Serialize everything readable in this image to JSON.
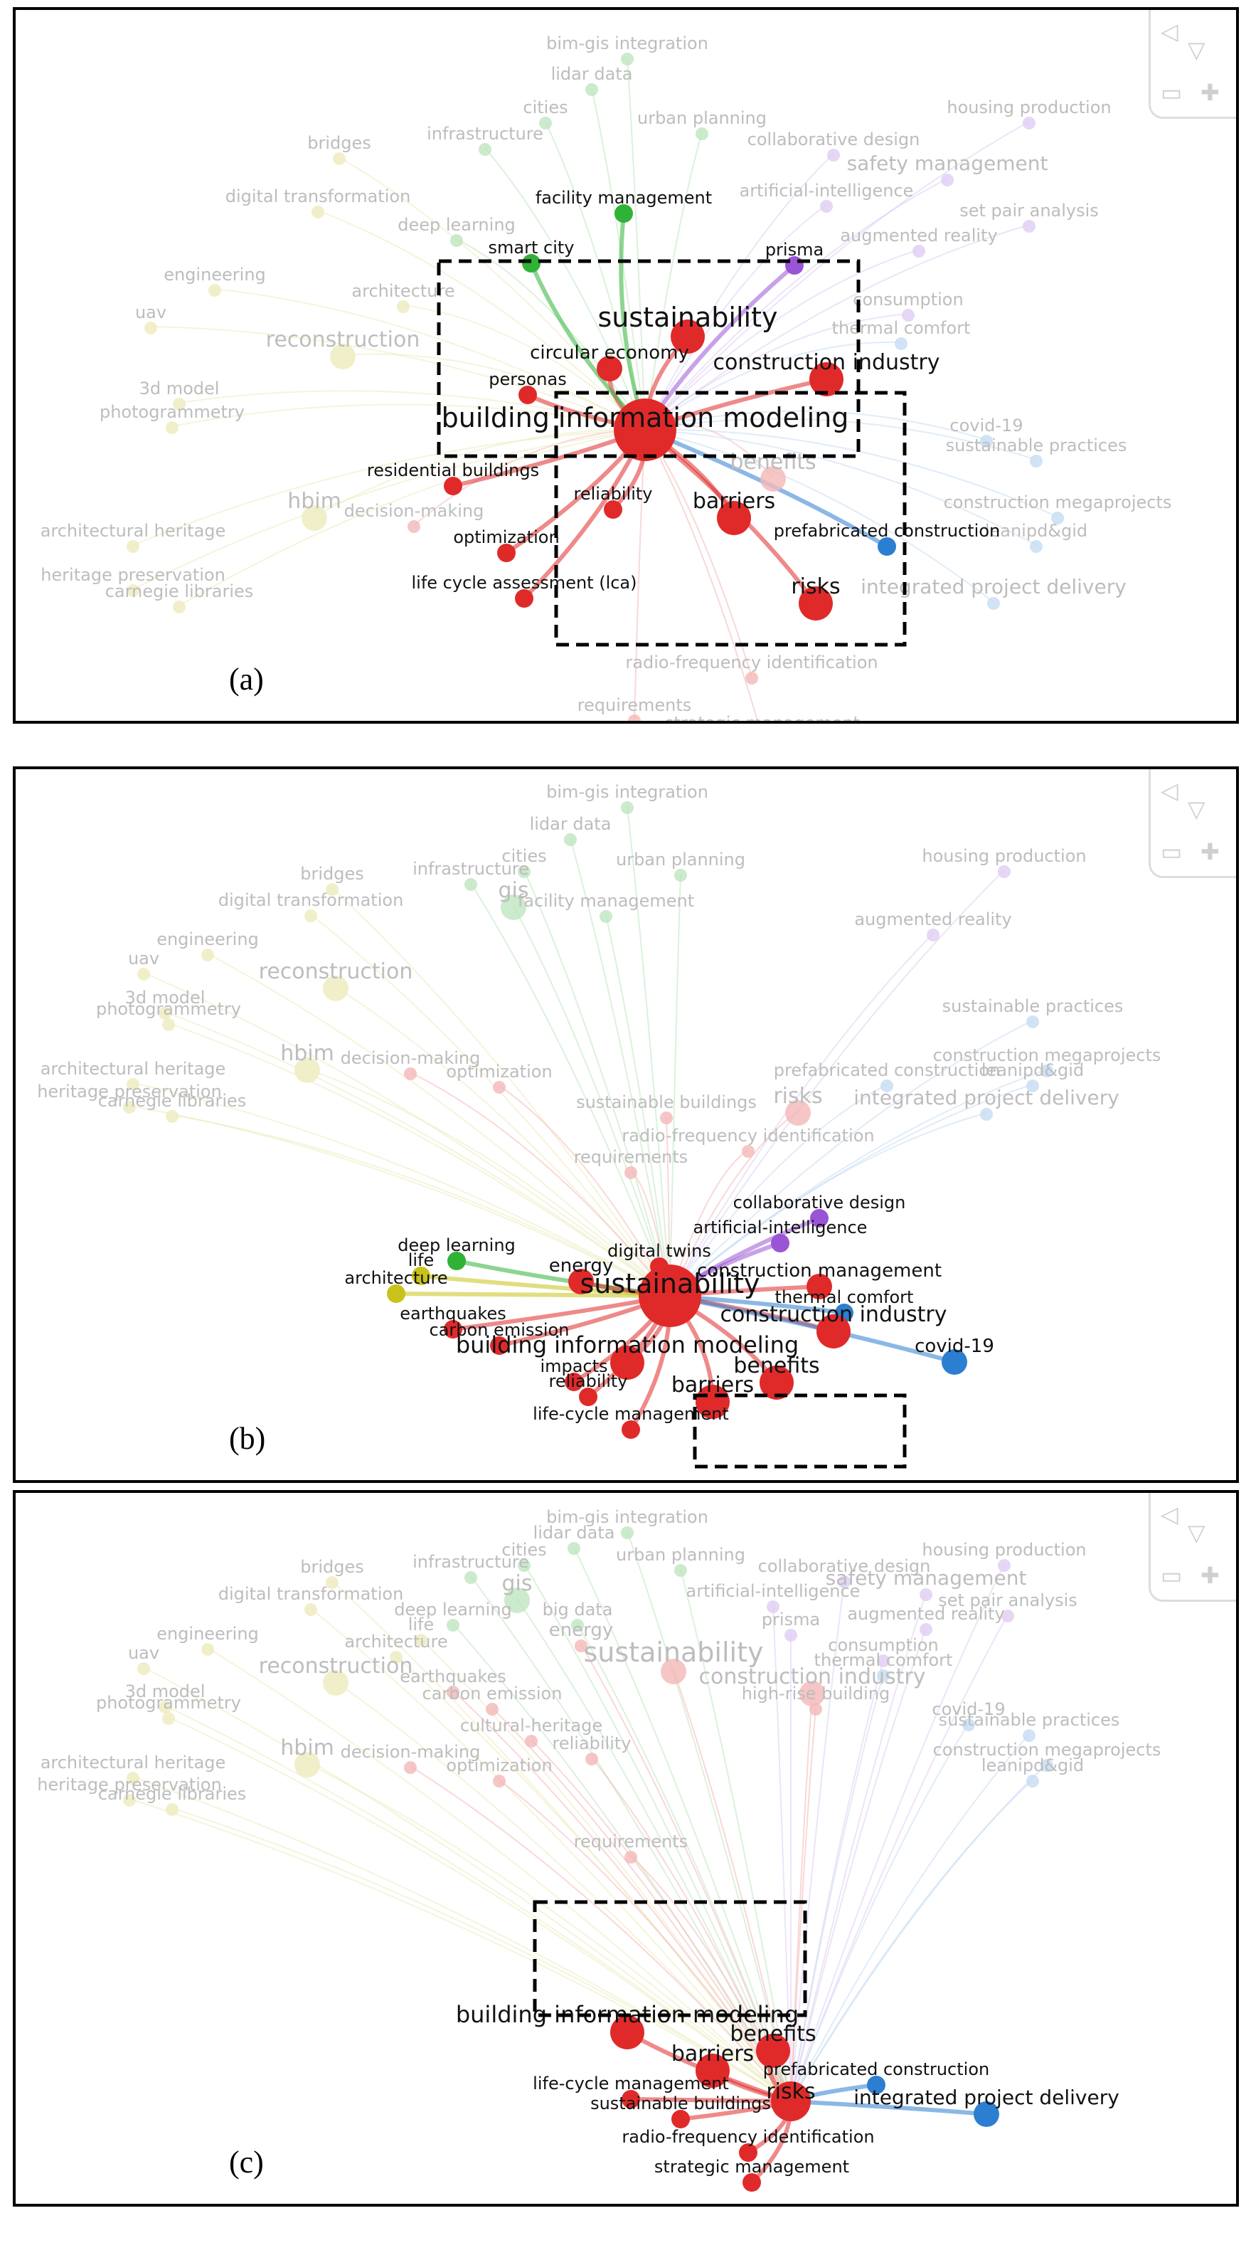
{
  "colors": {
    "red": "#e02a2a",
    "green": "#2fb236",
    "purple": "#9a55d6",
    "blue": "#2c7ed0",
    "yellow": "#c9c21a",
    "fade_red": "#f4b8b8",
    "fade_green": "#bfe5bf",
    "fade_purple": "#dfcdf2",
    "fade_blue": "#c6dcf2",
    "fade_yellow": "#ecebbd",
    "box": "#000000"
  },
  "panels": [
    {
      "id": "a",
      "label": "(a)",
      "center": "building information modeling",
      "hub_label": "building information modeling",
      "active_labels": [
        "sustainability",
        "circular economy",
        "construction industry",
        "smart city",
        "facility management",
        "prisma",
        "residential buildings",
        "optimization",
        "reliability",
        "barriers",
        "life cycle assessment (lca)",
        "prefabricated construction",
        "risks",
        "personas"
      ],
      "faded_labels": [
        "bim-gis integration",
        "lidar data",
        "cities",
        "urban planning",
        "housing production",
        "bridges",
        "infrastructure",
        "collaborative design",
        "safety management",
        "digital transformation",
        "artificial-intelligence",
        "set pair analysis",
        "deep learning",
        "augmented reality",
        "engineering",
        "architecture",
        "consumption",
        "thermal comfort",
        "uav",
        "reconstruction",
        "3d model",
        "photogrammetry",
        "covid-19",
        "sustainable practices",
        "benefits",
        "hbim",
        "decision-making",
        "construction megaprojects",
        "architectural heritage",
        "leanipd&gid",
        "heritage preservation",
        "carnegie libraries",
        "integrated project delivery",
        "radio-frequency identification",
        "requirements",
        "strategic management"
      ]
    },
    {
      "id": "b",
      "label": "(b)",
      "center": "sustainability",
      "hub_label": "sustainability",
      "active_labels": [
        "collaborative design",
        "artificial-intelligence",
        "deep learning",
        "digital twins",
        "life",
        "architecture",
        "energy",
        "construction management",
        "thermal comfort",
        "construction industry",
        "earthquakes",
        "carbon emission",
        "building information modeling",
        "covid-19",
        "impacts",
        "benefits",
        "reliability",
        "barriers",
        "life-cycle management"
      ],
      "faded_labels": [
        "bim-gis integration",
        "lidar data",
        "cities",
        "urban planning",
        "housing production",
        "bridges",
        "infrastructure",
        "gis",
        "digital transformation",
        "facility management",
        "augmented reality",
        "engineering",
        "uav",
        "reconstruction",
        "3d model",
        "photogrammetry",
        "sustainable practices",
        "hbim",
        "decision-making",
        "optimization",
        "construction megaprojects",
        "prefabricated construction",
        "leanipd&gid",
        "architectural heritage",
        "heritage preservation",
        "carnegie libraries",
        "risks",
        "integrated project delivery",
        "sustainable buildings",
        "radio-frequency identification",
        "requirements"
      ]
    },
    {
      "id": "c",
      "label": "(c)",
      "center": "risks",
      "hub_label": "risks",
      "active_labels": [
        "building information modeling",
        "benefits",
        "barriers",
        "prefabricated construction",
        "life-cycle management",
        "integrated project delivery",
        "sustainable buildings",
        "radio-frequency identification",
        "strategic management"
      ],
      "faded_labels": [
        "bim-gis integration",
        "lidar data",
        "cities",
        "urban planning",
        "housing production",
        "bridges",
        "infrastructure",
        "collaborative design",
        "gis",
        "safety management",
        "digital transformation",
        "artificial-intelligence",
        "set pair analysis",
        "deep learning",
        "big data",
        "augmented reality",
        "life",
        "prisma",
        "engineering",
        "energy",
        "consumption",
        "architecture",
        "thermal comfort",
        "uav",
        "reconstruction",
        "sustainability",
        "earthquakes",
        "construction industry",
        "3d model",
        "carbon emission",
        "high-rise building",
        "photogrammetry",
        "covid-19",
        "sustainable practices",
        "cultural-heritage",
        "hbim",
        "reliability",
        "decision-making",
        "construction megaprojects",
        "optimization",
        "leanipd&gid",
        "architectural heritage",
        "heritage preservation",
        "carnegie libraries",
        "requirements"
      ]
    }
  ]
}
